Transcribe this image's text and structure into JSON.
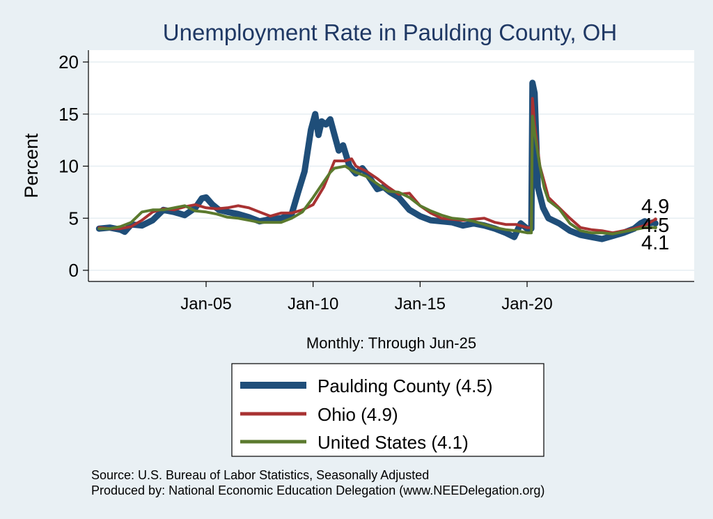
{
  "chart_data": {
    "type": "line",
    "title": "Unemployment Rate in Paulding  County, OH",
    "xlabel": "Monthly: Through Jun-25",
    "ylabel": "Percent",
    "ylim": [
      0,
      20
    ],
    "yticks": [
      0,
      5,
      10,
      15,
      20
    ],
    "xlim": [
      2000.0,
      2028.0
    ],
    "xticks": [
      {
        "label": "Jan-05",
        "value": 2005.0
      },
      {
        "label": "Jan-10",
        "value": 2010.0
      },
      {
        "label": "Jan-15",
        "value": 2015.0
      },
      {
        "label": "Jan-20",
        "value": 2020.0
      }
    ],
    "grid": true,
    "legend_position": "bottom",
    "end_labels": [
      "4.9",
      "4.5",
      "4.1"
    ],
    "series": [
      {
        "name": "Paulding  County (4.5)",
        "color": "#1f4e79",
        "points": [
          [
            2000.0,
            4.0
          ],
          [
            2000.5,
            4.1
          ],
          [
            2001.0,
            3.9
          ],
          [
            2001.2,
            3.7
          ],
          [
            2001.5,
            4.4
          ],
          [
            2002.0,
            4.3
          ],
          [
            2002.5,
            4.8
          ],
          [
            2003.0,
            5.8
          ],
          [
            2003.5,
            5.6
          ],
          [
            2004.0,
            5.3
          ],
          [
            2004.5,
            6.0
          ],
          [
            2004.8,
            6.9
          ],
          [
            2005.0,
            7.0
          ],
          [
            2005.3,
            6.3
          ],
          [
            2005.6,
            5.8
          ],
          [
            2006.0,
            5.6
          ],
          [
            2006.5,
            5.4
          ],
          [
            2007.0,
            5.1
          ],
          [
            2007.5,
            4.7
          ],
          [
            2008.0,
            4.9
          ],
          [
            2008.5,
            5.0
          ],
          [
            2009.0,
            5.4
          ],
          [
            2009.3,
            7.5
          ],
          [
            2009.6,
            9.5
          ],
          [
            2009.9,
            13.5
          ],
          [
            2010.1,
            15.0
          ],
          [
            2010.25,
            13.0
          ],
          [
            2010.4,
            14.3
          ],
          [
            2010.6,
            14.0
          ],
          [
            2010.8,
            14.5
          ],
          [
            2011.0,
            13.0
          ],
          [
            2011.2,
            11.5
          ],
          [
            2011.4,
            12.0
          ],
          [
            2011.7,
            10.0
          ],
          [
            2012.0,
            9.3
          ],
          [
            2012.3,
            9.8
          ],
          [
            2012.6,
            9.0
          ],
          [
            2013.0,
            7.8
          ],
          [
            2013.3,
            8.0
          ],
          [
            2013.6,
            7.5
          ],
          [
            2014.0,
            7.0
          ],
          [
            2014.5,
            5.8
          ],
          [
            2015.0,
            5.2
          ],
          [
            2015.5,
            4.8
          ],
          [
            2016.0,
            4.7
          ],
          [
            2016.5,
            4.6
          ],
          [
            2017.0,
            4.3
          ],
          [
            2017.5,
            4.5
          ],
          [
            2018.0,
            4.3
          ],
          [
            2018.5,
            4.0
          ],
          [
            2019.0,
            3.6
          ],
          [
            2019.4,
            3.2
          ],
          [
            2019.7,
            4.5
          ],
          [
            2020.0,
            4.0
          ],
          [
            2020.2,
            4.0
          ],
          [
            2020.25,
            18.0
          ],
          [
            2020.35,
            17.0
          ],
          [
            2020.5,
            8.0
          ],
          [
            2020.75,
            6.0
          ],
          [
            2021.0,
            5.0
          ],
          [
            2021.5,
            4.5
          ],
          [
            2022.0,
            3.8
          ],
          [
            2022.5,
            3.4
          ],
          [
            2023.0,
            3.2
          ],
          [
            2023.5,
            3.0
          ],
          [
            2024.0,
            3.3
          ],
          [
            2024.5,
            3.6
          ],
          [
            2025.0,
            4.0
          ],
          [
            2025.3,
            4.5
          ],
          [
            2025.5,
            4.7
          ],
          [
            2025.7,
            4.5
          ],
          [
            2025.9,
            4.6
          ],
          [
            2026.0,
            4.5
          ]
        ]
      },
      {
        "name": "Ohio (4.9)",
        "color": "#a83232",
        "points": [
          [
            2000.0,
            4.1
          ],
          [
            2000.5,
            4.0
          ],
          [
            2001.0,
            4.0
          ],
          [
            2001.5,
            4.2
          ],
          [
            2002.0,
            4.8
          ],
          [
            2002.5,
            5.6
          ],
          [
            2003.0,
            5.9
          ],
          [
            2003.5,
            5.8
          ],
          [
            2004.0,
            6.1
          ],
          [
            2004.5,
            6.3
          ],
          [
            2005.0,
            6.0
          ],
          [
            2005.5,
            5.9
          ],
          [
            2006.0,
            6.0
          ],
          [
            2006.5,
            6.2
          ],
          [
            2007.0,
            6.0
          ],
          [
            2007.5,
            5.6
          ],
          [
            2008.0,
            5.2
          ],
          [
            2008.5,
            5.5
          ],
          [
            2009.0,
            5.5
          ],
          [
            2009.5,
            5.8
          ],
          [
            2010.0,
            6.3
          ],
          [
            2010.5,
            8.0
          ],
          [
            2010.8,
            9.5
          ],
          [
            2011.0,
            10.5
          ],
          [
            2011.5,
            10.5
          ],
          [
            2011.8,
            10.7
          ],
          [
            2012.0,
            10.0
          ],
          [
            2012.5,
            9.5
          ],
          [
            2013.0,
            8.8
          ],
          [
            2013.5,
            8.0
          ],
          [
            2014.0,
            7.3
          ],
          [
            2014.5,
            7.4
          ],
          [
            2015.0,
            6.2
          ],
          [
            2015.5,
            5.5
          ],
          [
            2016.0,
            5.0
          ],
          [
            2016.5,
            4.9
          ],
          [
            2017.0,
            4.8
          ],
          [
            2017.5,
            4.9
          ],
          [
            2018.0,
            5.0
          ],
          [
            2018.5,
            4.6
          ],
          [
            2019.0,
            4.4
          ],
          [
            2019.5,
            4.4
          ],
          [
            2020.0,
            4.1
          ],
          [
            2020.2,
            4.1
          ],
          [
            2020.25,
            16.5
          ],
          [
            2020.35,
            14.0
          ],
          [
            2020.6,
            10.0
          ],
          [
            2020.8,
            8.5
          ],
          [
            2021.0,
            7.0
          ],
          [
            2021.5,
            6.0
          ],
          [
            2022.0,
            5.0
          ],
          [
            2022.5,
            4.1
          ],
          [
            2023.0,
            3.9
          ],
          [
            2023.5,
            3.8
          ],
          [
            2024.0,
            3.6
          ],
          [
            2024.5,
            3.8
          ],
          [
            2025.0,
            4.0
          ],
          [
            2025.5,
            4.3
          ],
          [
            2026.0,
            4.9
          ]
        ]
      },
      {
        "name": "United States (4.1)",
        "color": "#5b7a2e",
        "points": [
          [
            2000.0,
            4.0
          ],
          [
            2000.5,
            4.0
          ],
          [
            2001.0,
            4.2
          ],
          [
            2001.5,
            4.6
          ],
          [
            2002.0,
            5.6
          ],
          [
            2002.5,
            5.8
          ],
          [
            2003.0,
            5.8
          ],
          [
            2003.5,
            6.0
          ],
          [
            2004.0,
            6.2
          ],
          [
            2004.5,
            5.7
          ],
          [
            2005.0,
            5.6
          ],
          [
            2005.5,
            5.4
          ],
          [
            2006.0,
            5.1
          ],
          [
            2006.5,
            5.0
          ],
          [
            2007.0,
            4.8
          ],
          [
            2007.5,
            4.6
          ],
          [
            2008.0,
            4.6
          ],
          [
            2008.5,
            4.6
          ],
          [
            2009.0,
            5.0
          ],
          [
            2009.5,
            5.6
          ],
          [
            2010.0,
            7.0
          ],
          [
            2010.5,
            8.5
          ],
          [
            2010.8,
            9.4
          ],
          [
            2011.0,
            9.8
          ],
          [
            2011.5,
            10.0
          ],
          [
            2011.8,
            9.6
          ],
          [
            2012.0,
            9.4
          ],
          [
            2012.5,
            9.0
          ],
          [
            2013.0,
            8.3
          ],
          [
            2013.5,
            7.6
          ],
          [
            2014.0,
            7.5
          ],
          [
            2014.5,
            7.0
          ],
          [
            2015.0,
            6.2
          ],
          [
            2015.5,
            5.7
          ],
          [
            2016.0,
            5.3
          ],
          [
            2016.5,
            5.0
          ],
          [
            2017.0,
            4.9
          ],
          [
            2017.5,
            4.7
          ],
          [
            2018.0,
            4.4
          ],
          [
            2018.5,
            4.1
          ],
          [
            2019.0,
            3.9
          ],
          [
            2019.5,
            3.8
          ],
          [
            2020.0,
            3.6
          ],
          [
            2020.2,
            3.6
          ],
          [
            2020.25,
            14.8
          ],
          [
            2020.35,
            13.2
          ],
          [
            2020.6,
            10.0
          ],
          [
            2020.8,
            7.9
          ],
          [
            2021.0,
            6.7
          ],
          [
            2021.5,
            5.9
          ],
          [
            2022.0,
            4.5
          ],
          [
            2022.5,
            3.8
          ],
          [
            2023.0,
            3.6
          ],
          [
            2023.5,
            3.6
          ],
          [
            2024.0,
            3.5
          ],
          [
            2024.5,
            3.7
          ],
          [
            2025.0,
            3.9
          ],
          [
            2025.5,
            4.1
          ],
          [
            2026.0,
            4.1
          ]
        ]
      }
    ]
  },
  "footer": {
    "source": "Source: U.S. Bureau of Labor Statistics, Seasonally Adjusted",
    "producer": "Produced by: National Economic Education Delegation (www.NEEDelegation.org)"
  }
}
